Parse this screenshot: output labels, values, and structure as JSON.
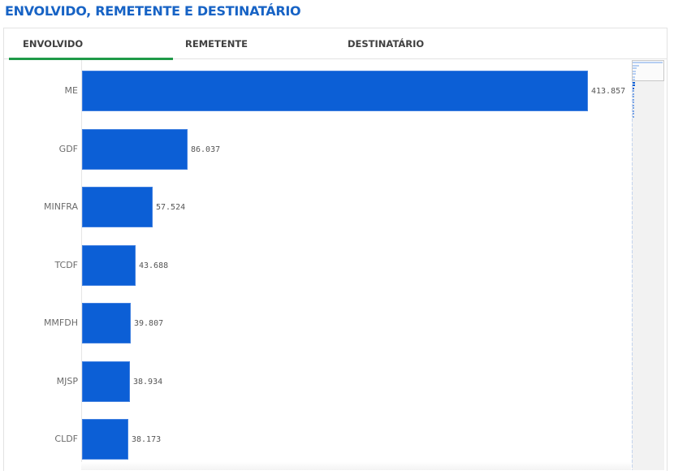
{
  "title": "ENVOLVIDO, REMETENTE E DESTINATÁRIO",
  "tabs": [
    {
      "label": "ENVOLVIDO",
      "active": true
    },
    {
      "label": "REMETENTE",
      "active": false
    },
    {
      "label": "DESTINATÁRIO",
      "active": false
    }
  ],
  "colors": {
    "bar": "#0c5fd6",
    "title": "#1763c5",
    "active_tab": "#1f9a48"
  },
  "bars": [
    {
      "label": "ME",
      "value_text": "413.857"
    },
    {
      "label": "GDF",
      "value_text": "86.037"
    },
    {
      "label": "MINFRA",
      "value_text": "57.524"
    },
    {
      "label": "TCDF",
      "value_text": "43.688"
    },
    {
      "label": "MMFDH",
      "value_text": "39.807"
    },
    {
      "label": "MJSP",
      "value_text": "38.934"
    },
    {
      "label": "CLDF",
      "value_text": "38.173"
    }
  ],
  "chart_data": {
    "type": "bar",
    "orientation": "horizontal",
    "title": "ENVOLVIDO, REMETENTE E DESTINATÁRIO",
    "categories": [
      "ME",
      "GDF",
      "MINFRA",
      "TCDF",
      "MMFDH",
      "MJSP",
      "CLDF"
    ],
    "values": [
      413857,
      86037,
      57524,
      43688,
      39807,
      38934,
      38173
    ],
    "xlabel": "",
    "ylabel": "",
    "grid": false,
    "legend": "none",
    "data_labels": true
  }
}
